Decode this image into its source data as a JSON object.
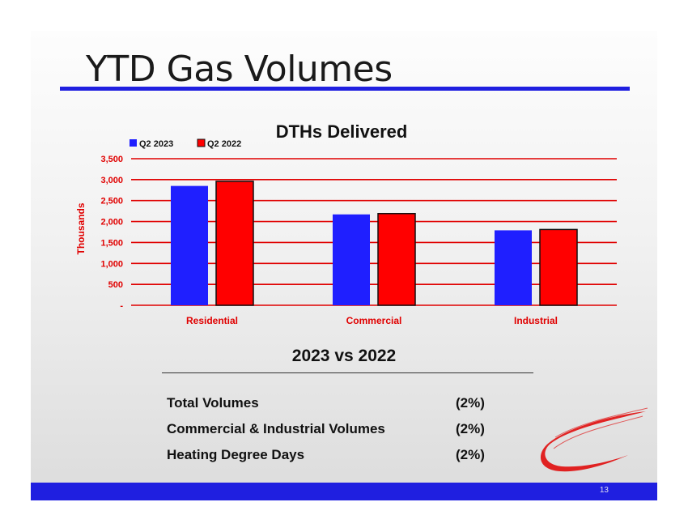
{
  "slide": {
    "title": "YTD Gas Volumes",
    "page_number": "13"
  },
  "chart_data": {
    "type": "bar",
    "title": "DTHs Delivered",
    "ylabel": "Thousands",
    "xlabel": "",
    "categories": [
      "Residential",
      "Commercial",
      "Industrial"
    ],
    "series": [
      {
        "name": "Q2 2023",
        "values": [
          2850,
          2170,
          1790
        ],
        "color": "#1f1fff"
      },
      {
        "name": "Q2 2022",
        "values": [
          2960,
          2190,
          1810
        ],
        "color": "#ff0000"
      }
    ],
    "ylim": [
      0,
      3500
    ],
    "yticks": [
      0,
      500,
      1000,
      1500,
      2000,
      2500,
      3000,
      3500
    ],
    "ytick_labels": [
      "-",
      "500",
      "1,000",
      "1,500",
      "2,000",
      "2,500",
      "3,000",
      "3,500"
    ],
    "grid": true,
    "grid_color": "#e00000",
    "label_color": "#e00000",
    "legend_position": "top-left"
  },
  "comparison": {
    "heading": "2023 vs 2022",
    "rows": [
      {
        "label": "Total Volumes",
        "value": "(2%)"
      },
      {
        "label": "Commercial & Industrial Volumes",
        "value": "(2%)"
      },
      {
        "label": "Heating Degree Days",
        "value": "(2%)"
      }
    ]
  },
  "logo": {
    "icon": "swoosh-logo-icon",
    "color": "#e00000"
  }
}
